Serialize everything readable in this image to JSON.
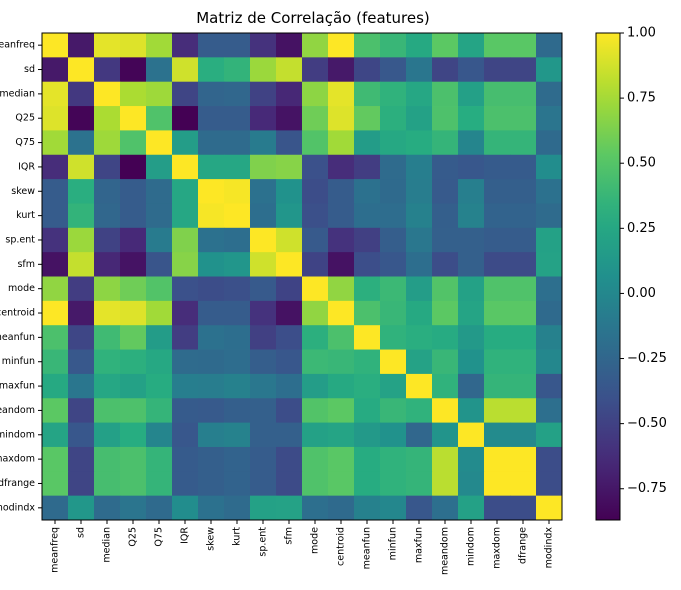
{
  "chart_data": {
    "type": "heatmap",
    "title": "Matriz de Correlação (features)",
    "labels": [
      "meanfreq",
      "sd",
      "median",
      "Q25",
      "Q75",
      "IQR",
      "skew",
      "kurt",
      "sp.ent",
      "sfm",
      "mode",
      "centroid",
      "meanfun",
      "minfun",
      "maxfun",
      "meandom",
      "mindom",
      "maxdom",
      "dfrange",
      "modindx"
    ],
    "values": [
      [
        1.0,
        -0.74,
        0.93,
        0.91,
        0.74,
        -0.63,
        -0.32,
        -0.32,
        -0.6,
        -0.78,
        0.69,
        1.0,
        0.46,
        0.38,
        0.27,
        0.53,
        0.23,
        0.52,
        0.52,
        -0.22
      ],
      [
        -0.74,
        1.0,
        -0.56,
        -0.85,
        -0.16,
        0.87,
        0.31,
        0.35,
        0.72,
        0.84,
        -0.53,
        -0.74,
        -0.47,
        -0.35,
        -0.13,
        -0.48,
        -0.36,
        -0.48,
        -0.48,
        0.12
      ],
      [
        0.93,
        -0.56,
        1.0,
        0.77,
        0.73,
        -0.48,
        -0.26,
        -0.24,
        -0.5,
        -0.66,
        0.68,
        0.93,
        0.41,
        0.34,
        0.25,
        0.46,
        0.19,
        0.44,
        0.44,
        -0.21
      ],
      [
        0.91,
        -0.85,
        0.77,
        1.0,
        0.48,
        -0.87,
        -0.32,
        -0.32,
        -0.65,
        -0.77,
        0.59,
        0.91,
        0.55,
        0.32,
        0.2,
        0.47,
        0.3,
        0.46,
        0.46,
        -0.14
      ],
      [
        0.74,
        -0.16,
        0.73,
        0.48,
        1.0,
        0.17,
        -0.21,
        -0.21,
        -0.09,
        -0.37,
        0.49,
        0.74,
        0.16,
        0.26,
        0.29,
        0.36,
        -0.02,
        0.36,
        0.36,
        -0.22
      ],
      [
        -0.63,
        0.87,
        -0.48,
        -0.87,
        0.17,
        1.0,
        0.25,
        0.25,
        0.64,
        0.66,
        -0.4,
        -0.63,
        -0.53,
        -0.21,
        -0.07,
        -0.33,
        -0.36,
        -0.33,
        -0.33,
        0.04
      ],
      [
        -0.32,
        0.31,
        -0.26,
        -0.32,
        -0.21,
        0.25,
        1.0,
        0.98,
        -0.17,
        0.08,
        -0.43,
        -0.32,
        -0.17,
        -0.22,
        -0.08,
        -0.34,
        -0.06,
        -0.3,
        -0.3,
        -0.17
      ],
      [
        -0.32,
        0.35,
        -0.24,
        -0.32,
        -0.21,
        0.25,
        0.98,
        1.0,
        -0.19,
        0.11,
        -0.41,
        -0.32,
        -0.19,
        -0.2,
        -0.05,
        -0.3,
        -0.04,
        -0.27,
        -0.27,
        -0.21
      ],
      [
        -0.6,
        0.72,
        -0.5,
        -0.65,
        -0.09,
        0.64,
        -0.17,
        -0.19,
        1.0,
        0.87,
        -0.34,
        -0.6,
        -0.51,
        -0.31,
        -0.12,
        -0.29,
        -0.29,
        -0.32,
        -0.32,
        0.2
      ],
      [
        -0.78,
        0.84,
        -0.66,
        -0.77,
        -0.37,
        0.66,
        0.08,
        0.11,
        0.87,
        1.0,
        -0.49,
        -0.78,
        -0.42,
        -0.36,
        -0.19,
        -0.43,
        -0.29,
        -0.44,
        -0.44,
        0.21
      ],
      [
        0.69,
        -0.53,
        0.68,
        0.59,
        0.49,
        -0.4,
        -0.43,
        -0.41,
        -0.34,
        -0.49,
        1.0,
        0.69,
        0.32,
        0.39,
        0.17,
        0.49,
        0.2,
        0.48,
        0.48,
        -0.18
      ],
      [
        1.0,
        -0.74,
        0.93,
        0.91,
        0.74,
        -0.63,
        -0.32,
        -0.32,
        -0.6,
        -0.78,
        0.69,
        1.0,
        0.46,
        0.38,
        0.27,
        0.53,
        0.23,
        0.52,
        0.52,
        -0.22
      ],
      [
        0.46,
        -0.47,
        0.41,
        0.55,
        0.16,
        -0.53,
        -0.17,
        -0.19,
        -0.51,
        -0.42,
        0.32,
        0.46,
        1.0,
        0.34,
        0.31,
        0.28,
        0.14,
        0.29,
        0.29,
        -0.05
      ],
      [
        0.38,
        -0.35,
        0.34,
        0.32,
        0.26,
        -0.21,
        -0.22,
        -0.2,
        -0.31,
        -0.36,
        0.39,
        0.38,
        0.34,
        1.0,
        0.21,
        0.38,
        0.08,
        0.34,
        0.34,
        0.0
      ],
      [
        0.27,
        -0.13,
        0.25,
        0.2,
        0.29,
        -0.07,
        -0.08,
        -0.05,
        -0.12,
        -0.19,
        0.17,
        0.27,
        0.31,
        0.21,
        1.0,
        0.34,
        -0.24,
        0.36,
        0.36,
        -0.36
      ],
      [
        0.53,
        -0.48,
        0.46,
        0.47,
        0.36,
        -0.33,
        -0.34,
        -0.3,
        -0.29,
        -0.43,
        0.49,
        0.53,
        0.28,
        0.38,
        0.34,
        1.0,
        0.1,
        0.81,
        0.81,
        -0.18
      ],
      [
        0.23,
        -0.36,
        0.19,
        0.3,
        -0.02,
        -0.36,
        -0.06,
        -0.04,
        -0.29,
        -0.29,
        0.2,
        0.23,
        0.14,
        0.08,
        -0.24,
        0.1,
        1.0,
        0.03,
        0.01,
        0.2
      ],
      [
        0.52,
        -0.48,
        0.44,
        0.46,
        0.36,
        -0.33,
        -0.3,
        -0.27,
        -0.32,
        -0.44,
        0.48,
        0.52,
        0.29,
        0.34,
        0.36,
        0.81,
        0.03,
        1.0,
        1.0,
        -0.43
      ],
      [
        0.52,
        -0.48,
        0.44,
        0.46,
        0.36,
        -0.33,
        -0.3,
        -0.27,
        -0.32,
        -0.44,
        0.48,
        0.52,
        0.29,
        0.34,
        0.36,
        0.81,
        0.01,
        1.0,
        1.0,
        -0.43
      ],
      [
        -0.22,
        0.12,
        -0.21,
        -0.14,
        -0.22,
        0.04,
        -0.17,
        -0.21,
        0.2,
        0.21,
        -0.18,
        -0.22,
        -0.05,
        0.0,
        -0.36,
        -0.18,
        0.2,
        -0.43,
        -0.43,
        1.0
      ]
    ],
    "colorbar": {
      "colormap": "viridis",
      "vmin": -0.87,
      "vmax": 1.0,
      "ticks": [
        -0.75,
        -0.5,
        -0.25,
        0.0,
        0.25,
        0.5,
        0.75,
        1.0
      ],
      "tick_labels": [
        "−0.75",
        "−0.50",
        "−0.25",
        "0.00",
        "0.25",
        "0.50",
        "0.75",
        "1.00"
      ]
    }
  }
}
